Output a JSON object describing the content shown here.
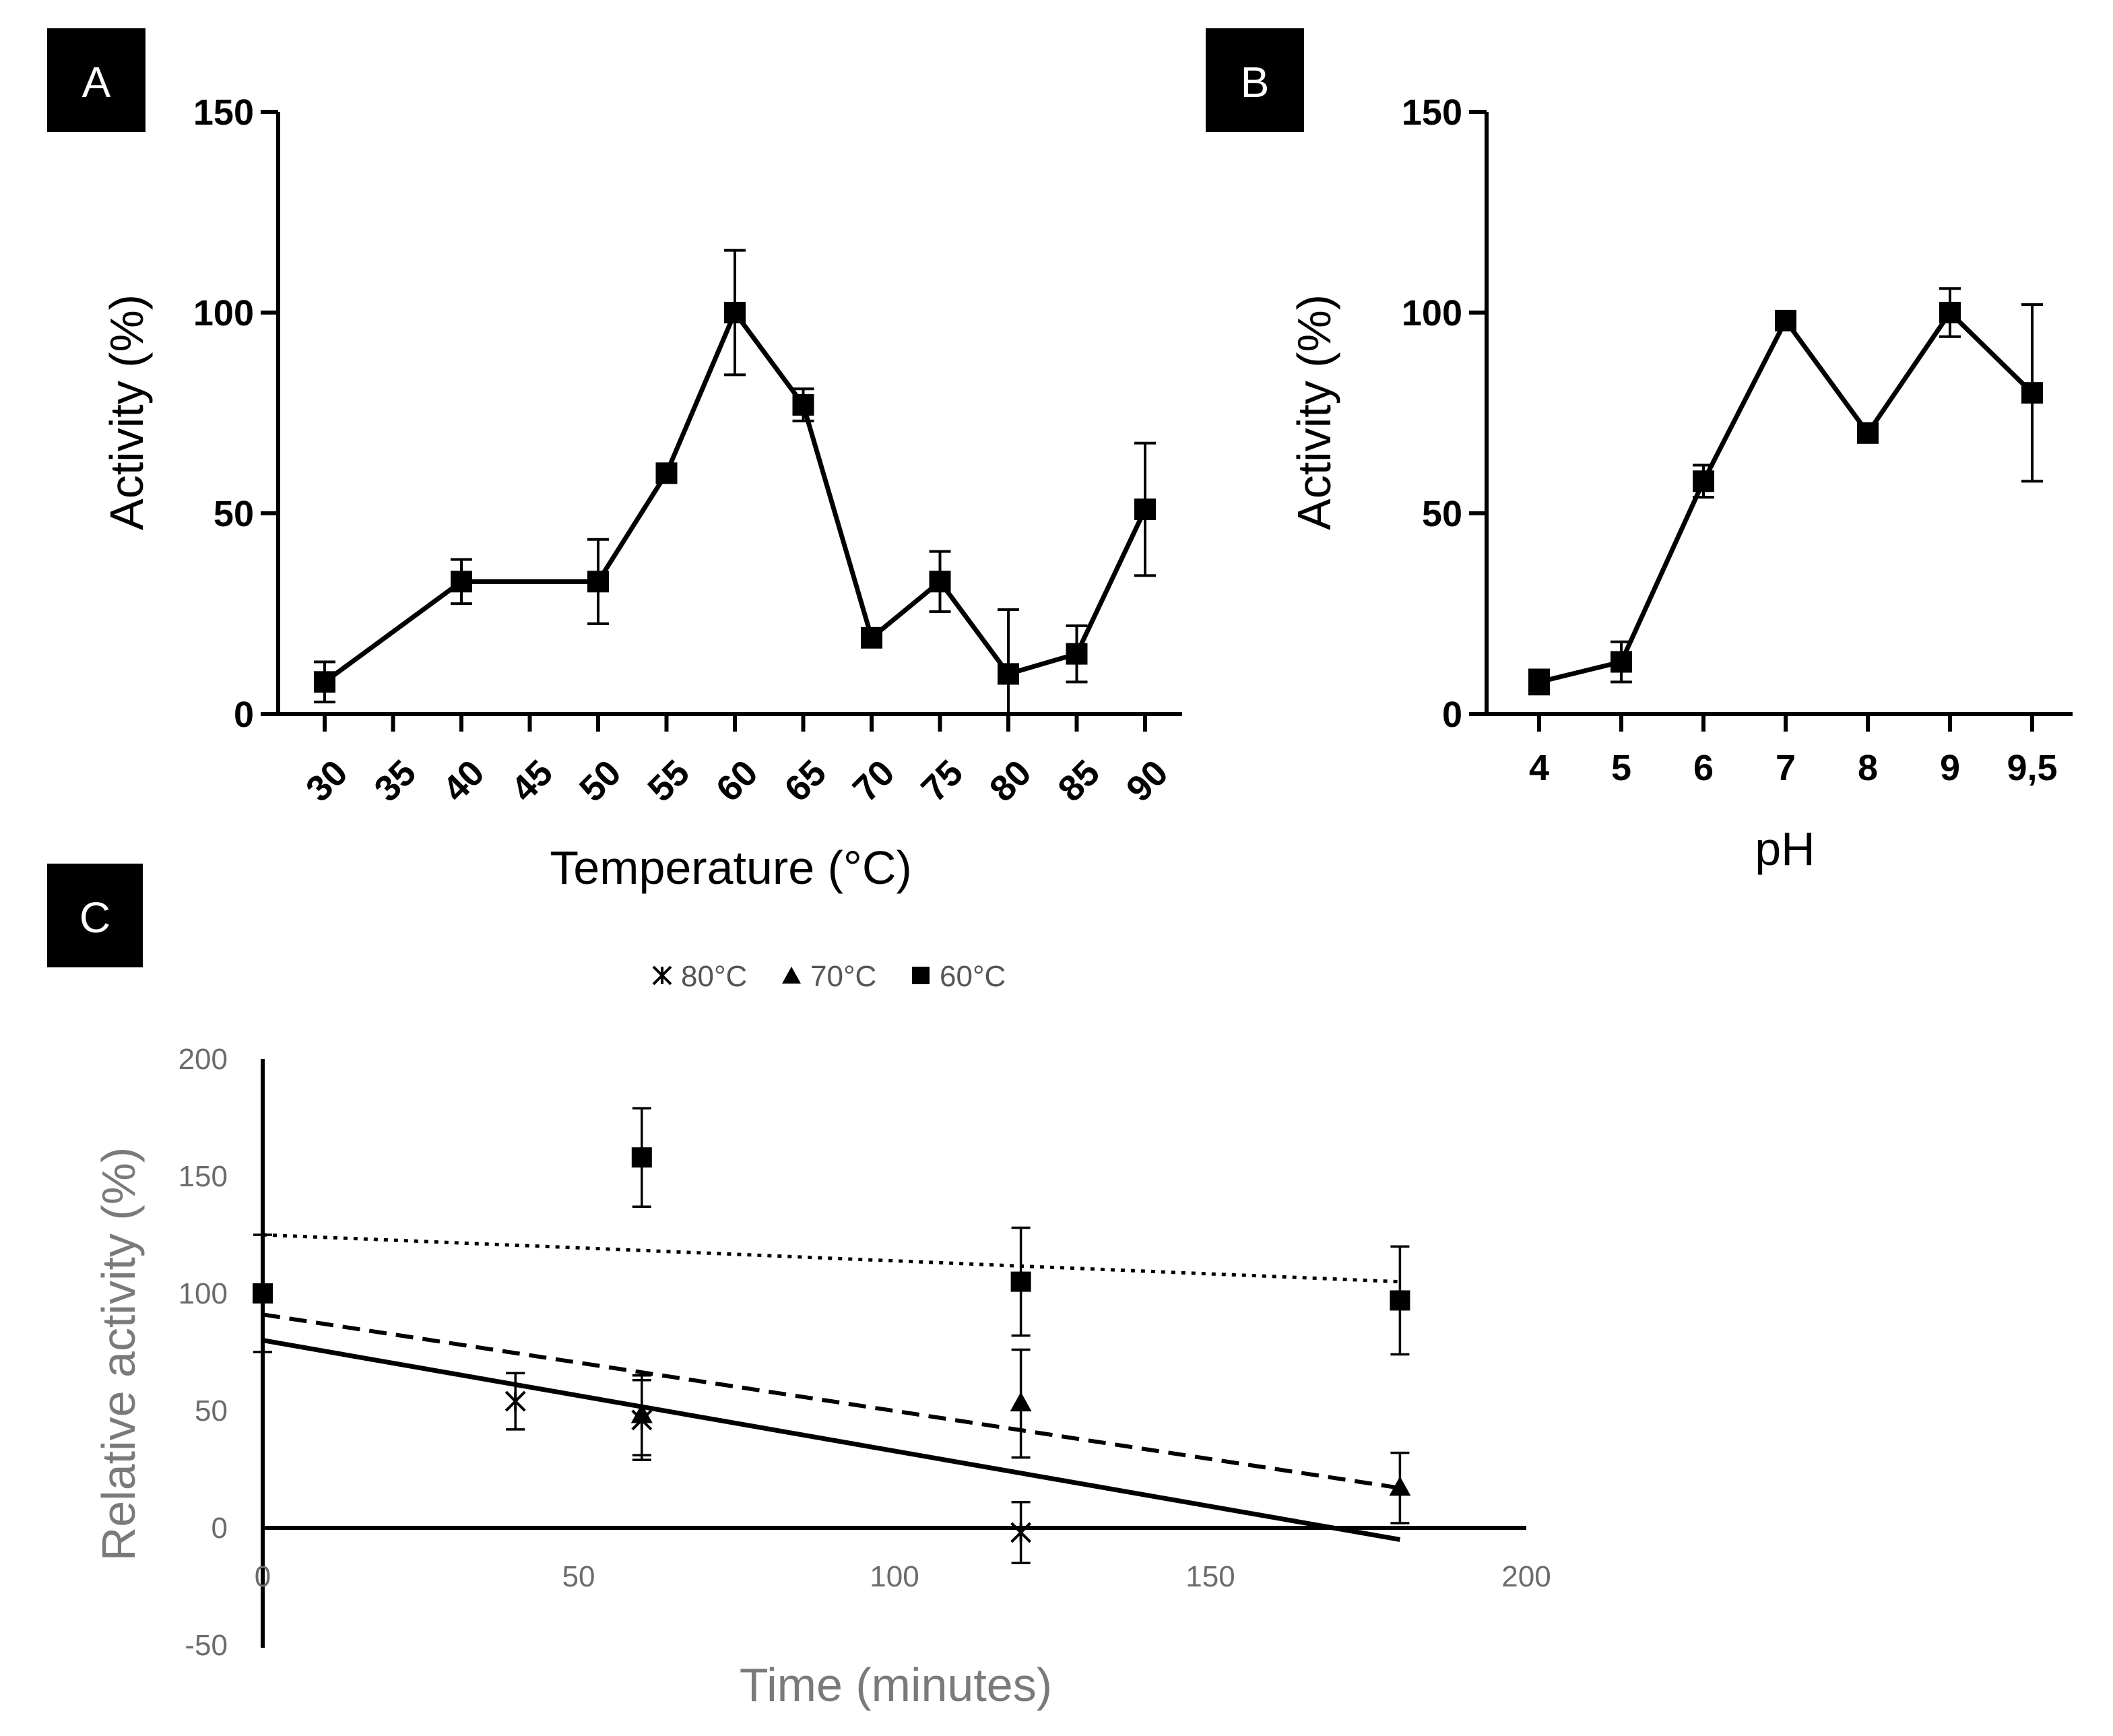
{
  "chart_data": [
    {
      "panel": "A",
      "type": "line",
      "xlabel": "Temperature (°C)",
      "ylabel": "Activity (%)",
      "categories": [
        "30",
        "35",
        "40",
        "45",
        "50",
        "55",
        "60",
        "65",
        "70",
        "75",
        "80",
        "85",
        "90"
      ],
      "ylim": [
        0,
        150
      ],
      "yticks": [
        0,
        50,
        100,
        150
      ],
      "series": [
        {
          "marker": "square",
          "x": [
            "30",
            "40",
            "50",
            "55",
            "60",
            "65",
            "70",
            "75",
            "80",
            "85",
            "90"
          ],
          "values": [
            8,
            33,
            33,
            60,
            100,
            77,
            19,
            33,
            10,
            15,
            51
          ],
          "error": [
            5,
            5.5,
            10.5,
            1,
            15.5,
            4,
            1,
            7.5,
            16,
            7,
            16.5
          ]
        }
      ]
    },
    {
      "panel": "B",
      "type": "line",
      "xlabel": "pH",
      "ylabel": "Activity (%)",
      "categories": [
        "4",
        "5",
        "6",
        "7",
        "8",
        "9",
        "9,5"
      ],
      "ylim": [
        0,
        150
      ],
      "yticks": [
        0,
        50,
        100,
        150
      ],
      "series": [
        {
          "marker": "square",
          "x": [
            "4",
            "5",
            "6",
            "7",
            "8",
            "9",
            "9,5"
          ],
          "values": [
            8,
            13,
            58,
            98,
            70,
            100,
            80
          ],
          "error": [
            3,
            5,
            4,
            1.5,
            1,
            6,
            22
          ]
        }
      ]
    },
    {
      "panel": "C",
      "type": "scatter",
      "xlabel": "Time (minutes)",
      "ylabel": "Relative activity (%)",
      "xlim": [
        0,
        200
      ],
      "ylim": [
        -50,
        200
      ],
      "xticks": [
        0,
        50,
        100,
        150,
        200
      ],
      "yticks": [
        -50,
        0,
        50,
        100,
        150,
        200
      ],
      "legend": {
        "position": "top",
        "entries": [
          "80°C",
          "70°C",
          "60°C"
        ]
      },
      "series": [
        {
          "name": "80°C",
          "marker": "asterisk",
          "x": [
            40,
            60,
            120
          ],
          "values": [
            54,
            46,
            -2
          ],
          "error": [
            12,
            17,
            13
          ],
          "trendline": {
            "style": "solid",
            "x": [
              0,
              180
            ],
            "y": [
              80,
              -5
            ]
          }
        },
        {
          "name": "70°C",
          "marker": "triangle",
          "x": [
            60,
            120,
            180
          ],
          "values": [
            48,
            53,
            17
          ],
          "error": [
            17,
            23,
            15
          ],
          "trendline": {
            "style": "dashed",
            "x": [
              0,
              180
            ],
            "y": [
              91,
              17
            ]
          }
        },
        {
          "name": "60°C",
          "marker": "square",
          "x": [
            0,
            60,
            120,
            180
          ],
          "values": [
            100,
            158,
            105,
            97
          ],
          "error": [
            25,
            21,
            23,
            23
          ],
          "trendline": {
            "style": "dotted",
            "x": [
              0,
              180
            ],
            "y": [
              125,
              105
            ]
          }
        }
      ]
    }
  ]
}
